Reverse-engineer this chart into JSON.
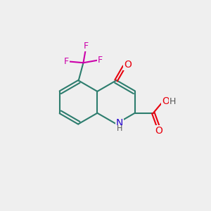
{
  "bg_color": "#efefef",
  "bond_color": "#2d7d6e",
  "atom_colors": {
    "O": "#e8000d",
    "N": "#2200cc",
    "F": "#cc00aa",
    "H": "#555555"
  }
}
